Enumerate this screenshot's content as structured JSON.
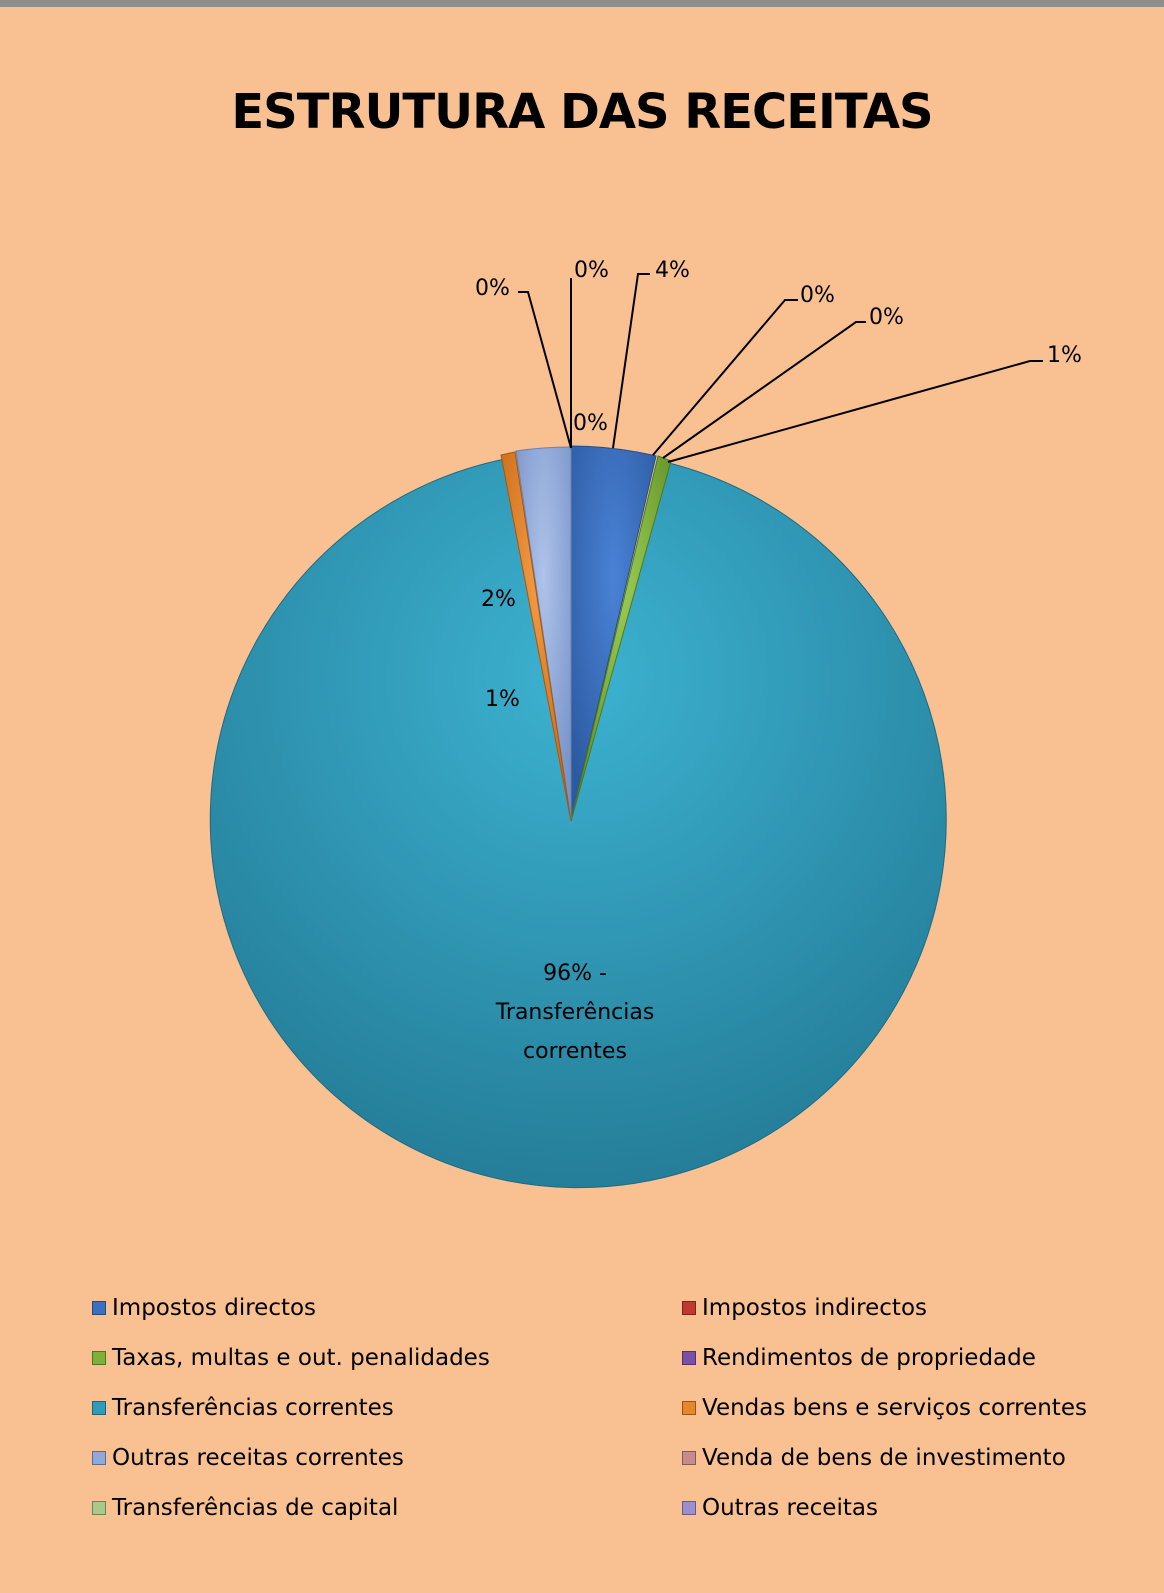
{
  "chart_data": {
    "type": "pie",
    "title": "ESTRUTURA DAS RECEITAS",
    "legend_position": "bottom",
    "slices": [
      {
        "name": "Impostos directos",
        "value": 4,
        "label": "4%",
        "color": "#3b6fbf"
      },
      {
        "name": "Impostos indirectos",
        "value": 0,
        "label": "0%",
        "color": "#c0392b"
      },
      {
        "name": "Taxas, multas e out. penalidades",
        "value": 1,
        "label": "1%",
        "color": "#7fb03a"
      },
      {
        "name": "Rendimentos de propriedade",
        "value": 0,
        "label": "0%",
        "color": "#7b4fa6"
      },
      {
        "name": "Transferências correntes",
        "value": 96,
        "label": "96% - Transferências correntes",
        "color": "#2e9bb9"
      },
      {
        "name": "Vendas bens e serviços correntes",
        "value": 1,
        "label": "1%",
        "color": "#e8862a"
      },
      {
        "name": "Outras receitas correntes",
        "value": 2,
        "label": "2%",
        "color": "#8fa9d9"
      },
      {
        "name": "Venda de bens de investimento",
        "value": 0,
        "label": "0%",
        "color": "#c78b8b"
      },
      {
        "name": "Transferências de capital",
        "value": 0,
        "label": "0%",
        "color": "#a9c98a"
      },
      {
        "name": "Outras receitas",
        "value": 0,
        "label": "0%",
        "color": "#9b8fd0"
      }
    ],
    "extra_labels": [
      "0%"
    ]
  }
}
